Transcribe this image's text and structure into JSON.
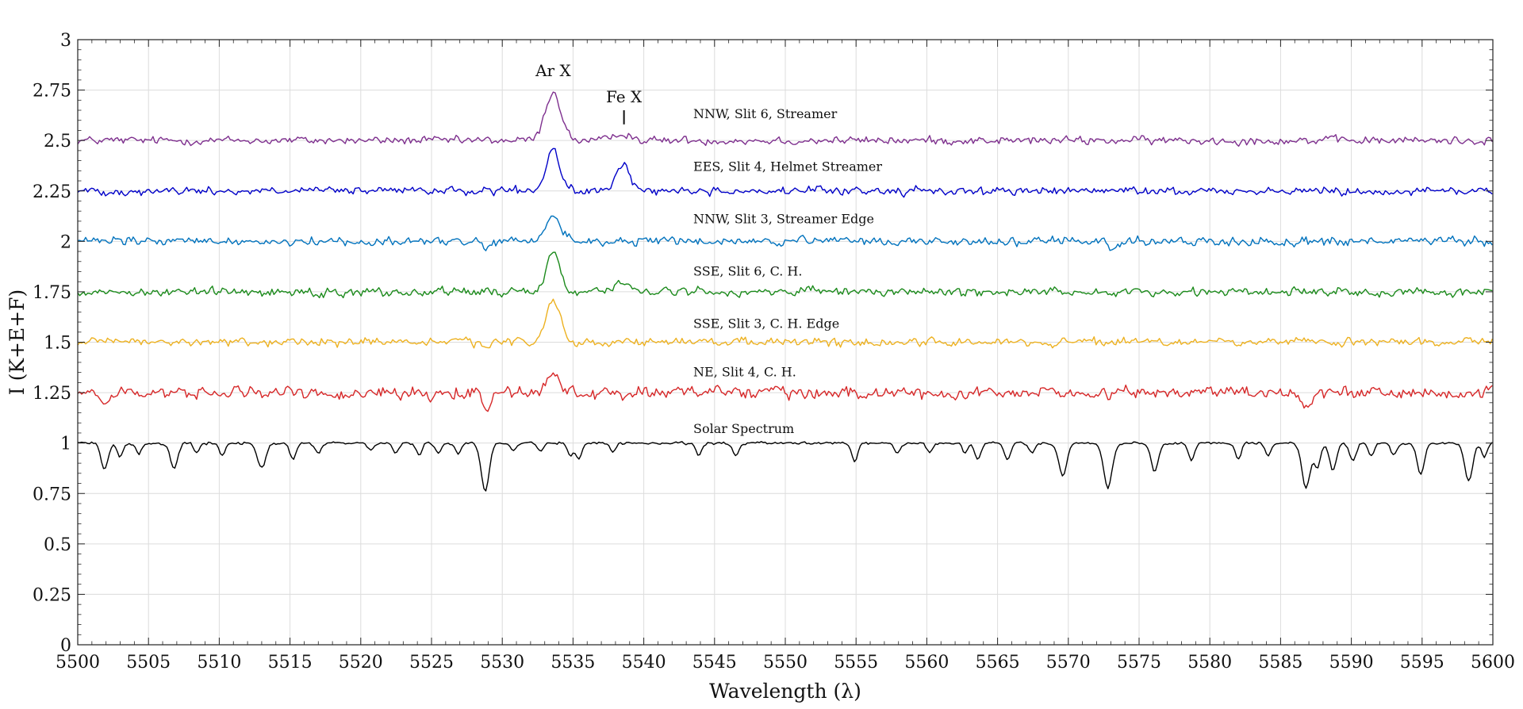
{
  "chart_data": {
    "type": "line",
    "title": "",
    "xlabel": "Wavelength (λ)",
    "ylabel": "I (K+E+F)",
    "xlim": [
      5500,
      5600
    ],
    "ylim": [
      0,
      3
    ],
    "grid": true,
    "x_ticks": [
      5500,
      5505,
      5510,
      5515,
      5520,
      5525,
      5530,
      5535,
      5540,
      5545,
      5550,
      5555,
      5560,
      5565,
      5570,
      5575,
      5580,
      5585,
      5590,
      5595,
      5600
    ],
    "x_tick_labels": [
      "5500",
      "5505",
      "5510",
      "5515",
      "5520",
      "5525",
      "5530",
      "5535",
      "5540",
      "5545",
      "5550",
      "5555",
      "5560",
      "5565",
      "5570",
      "5575",
      "5580",
      "5585",
      "5590",
      "5595",
      "5600"
    ],
    "y_ticks": [
      0,
      0.25,
      0.5,
      0.75,
      1,
      1.25,
      1.5,
      1.75,
      2,
      2.25,
      2.5,
      2.75,
      3
    ],
    "y_tick_labels": [
      "0",
      "0.25",
      "0.5",
      "0.75",
      "1",
      "1.25",
      "1.5",
      "1.75",
      "2",
      "2.25",
      "2.5",
      "2.75",
      "3"
    ],
    "line_annotations": [
      {
        "text": "Ar X",
        "x": 5533.6,
        "y": 2.82
      },
      {
        "text": "Fe X",
        "x": 5538.6,
        "y": 2.69,
        "marker_y": [
          2.58,
          2.65
        ]
      }
    ],
    "series": [
      {
        "name": "NNW, Slit 6, Streamer",
        "color": "#7e2f8e",
        "baseline": 2.5,
        "noise": 0.012,
        "label_x": 5543.5,
        "label_y": 2.61,
        "features": [
          {
            "center": 5533.6,
            "amp": 0.24,
            "width": 0.55
          },
          {
            "center": 5538.6,
            "amp": 0.04,
            "width": 0.5
          }
        ]
      },
      {
        "name": "EES, Slit 4, Helmet Streamer",
        "color": "#0000c8",
        "baseline": 2.25,
        "noise": 0.012,
        "label_x": 5543.5,
        "label_y": 2.35,
        "features": [
          {
            "center": 5533.6,
            "amp": 0.21,
            "width": 0.45
          },
          {
            "center": 5538.6,
            "amp": 0.14,
            "width": 0.45
          }
        ]
      },
      {
        "name": "NNW, Slit 3, Streamer Edge",
        "color": "#0072bd",
        "baseline": 2.0,
        "noise": 0.013,
        "label_x": 5543.5,
        "label_y": 2.09,
        "features": [
          {
            "center": 5533.6,
            "amp": 0.13,
            "width": 0.5
          },
          {
            "center": 5528.9,
            "amp": -0.05,
            "width": 0.3
          },
          {
            "center": 5573.2,
            "amp": -0.05,
            "width": 0.3
          }
        ]
      },
      {
        "name": "SSE, Slit 6, C. H.",
        "color": "#1b8a1b",
        "baseline": 1.75,
        "noise": 0.013,
        "label_x": 5543.5,
        "label_y": 1.83,
        "features": [
          {
            "center": 5533.6,
            "amp": 0.21,
            "width": 0.45
          },
          {
            "center": 5538.6,
            "amp": 0.05,
            "width": 0.5
          }
        ]
      },
      {
        "name": "SSE, Slit 3, C. H. Edge",
        "color": "#edb120",
        "baseline": 1.5,
        "noise": 0.012,
        "label_x": 5543.5,
        "label_y": 1.57,
        "features": [
          {
            "center": 5533.6,
            "amp": 0.21,
            "width": 0.5
          },
          {
            "center": 5528.9,
            "amp": -0.04,
            "width": 0.3
          }
        ]
      },
      {
        "name": "NE, Slit 4, C. H.",
        "color": "#d62728",
        "baseline": 1.25,
        "noise": 0.018,
        "label_x": 5543.5,
        "label_y": 1.33,
        "features": [
          {
            "center": 5533.6,
            "amp": 0.1,
            "width": 0.45
          },
          {
            "center": 5528.9,
            "amp": -0.1,
            "width": 0.3
          },
          {
            "center": 5502.0,
            "amp": -0.06,
            "width": 0.3
          },
          {
            "center": 5586.9,
            "amp": -0.06,
            "width": 0.3
          }
        ]
      },
      {
        "name": "Solar Spectrum",
        "color": "#000000",
        "baseline": 1.0,
        "noise": 0.004,
        "label_x": 5543.5,
        "label_y": 1.05,
        "features": [
          {
            "center": 5501.9,
            "amp": -0.13,
            "width": 0.25
          },
          {
            "center": 5503.0,
            "amp": -0.07,
            "width": 0.2
          },
          {
            "center": 5504.3,
            "amp": -0.05,
            "width": 0.2
          },
          {
            "center": 5506.8,
            "amp": -0.13,
            "width": 0.25
          },
          {
            "center": 5508.4,
            "amp": -0.05,
            "width": 0.2
          },
          {
            "center": 5510.2,
            "amp": -0.06,
            "width": 0.2
          },
          {
            "center": 5513.0,
            "amp": -0.12,
            "width": 0.3
          },
          {
            "center": 5515.2,
            "amp": -0.08,
            "width": 0.22
          },
          {
            "center": 5517.0,
            "amp": -0.05,
            "width": 0.2
          },
          {
            "center": 5520.7,
            "amp": -0.04,
            "width": 0.2
          },
          {
            "center": 5522.5,
            "amp": -0.05,
            "width": 0.2
          },
          {
            "center": 5524.1,
            "amp": -0.06,
            "width": 0.2
          },
          {
            "center": 5525.5,
            "amp": -0.05,
            "width": 0.2
          },
          {
            "center": 5526.9,
            "amp": -0.05,
            "width": 0.2
          },
          {
            "center": 5528.8,
            "amp": -0.24,
            "width": 0.28
          },
          {
            "center": 5530.8,
            "amp": -0.04,
            "width": 0.2
          },
          {
            "center": 5532.7,
            "amp": -0.04,
            "width": 0.2
          },
          {
            "center": 5534.8,
            "amp": -0.06,
            "width": 0.2
          },
          {
            "center": 5535.4,
            "amp": -0.08,
            "width": 0.22
          },
          {
            "center": 5537.8,
            "amp": -0.04,
            "width": 0.2
          },
          {
            "center": 5543.9,
            "amp": -0.06,
            "width": 0.2
          },
          {
            "center": 5546.5,
            "amp": -0.06,
            "width": 0.22
          },
          {
            "center": 5554.9,
            "amp": -0.09,
            "width": 0.22
          },
          {
            "center": 5557.9,
            "amp": -0.05,
            "width": 0.2
          },
          {
            "center": 5560.2,
            "amp": -0.05,
            "width": 0.2
          },
          {
            "center": 5562.7,
            "amp": -0.05,
            "width": 0.2
          },
          {
            "center": 5563.6,
            "amp": -0.08,
            "width": 0.22
          },
          {
            "center": 5565.7,
            "amp": -0.08,
            "width": 0.22
          },
          {
            "center": 5567.4,
            "amp": -0.05,
            "width": 0.2
          },
          {
            "center": 5569.6,
            "amp": -0.16,
            "width": 0.28
          },
          {
            "center": 5572.8,
            "amp": -0.22,
            "width": 0.3
          },
          {
            "center": 5576.1,
            "amp": -0.14,
            "width": 0.26
          },
          {
            "center": 5578.7,
            "amp": -0.08,
            "width": 0.22
          },
          {
            "center": 5582.0,
            "amp": -0.08,
            "width": 0.22
          },
          {
            "center": 5584.1,
            "amp": -0.06,
            "width": 0.2
          },
          {
            "center": 5586.8,
            "amp": -0.22,
            "width": 0.3
          },
          {
            "center": 5587.6,
            "amp": -0.12,
            "width": 0.22
          },
          {
            "center": 5588.7,
            "amp": -0.14,
            "width": 0.25
          },
          {
            "center": 5590.1,
            "amp": -0.09,
            "width": 0.22
          },
          {
            "center": 5591.4,
            "amp": -0.06,
            "width": 0.2
          },
          {
            "center": 5593.0,
            "amp": -0.06,
            "width": 0.2
          },
          {
            "center": 5594.9,
            "amp": -0.15,
            "width": 0.26
          },
          {
            "center": 5598.3,
            "amp": -0.19,
            "width": 0.28
          },
          {
            "center": 5599.4,
            "amp": -0.07,
            "width": 0.2
          }
        ]
      }
    ]
  }
}
